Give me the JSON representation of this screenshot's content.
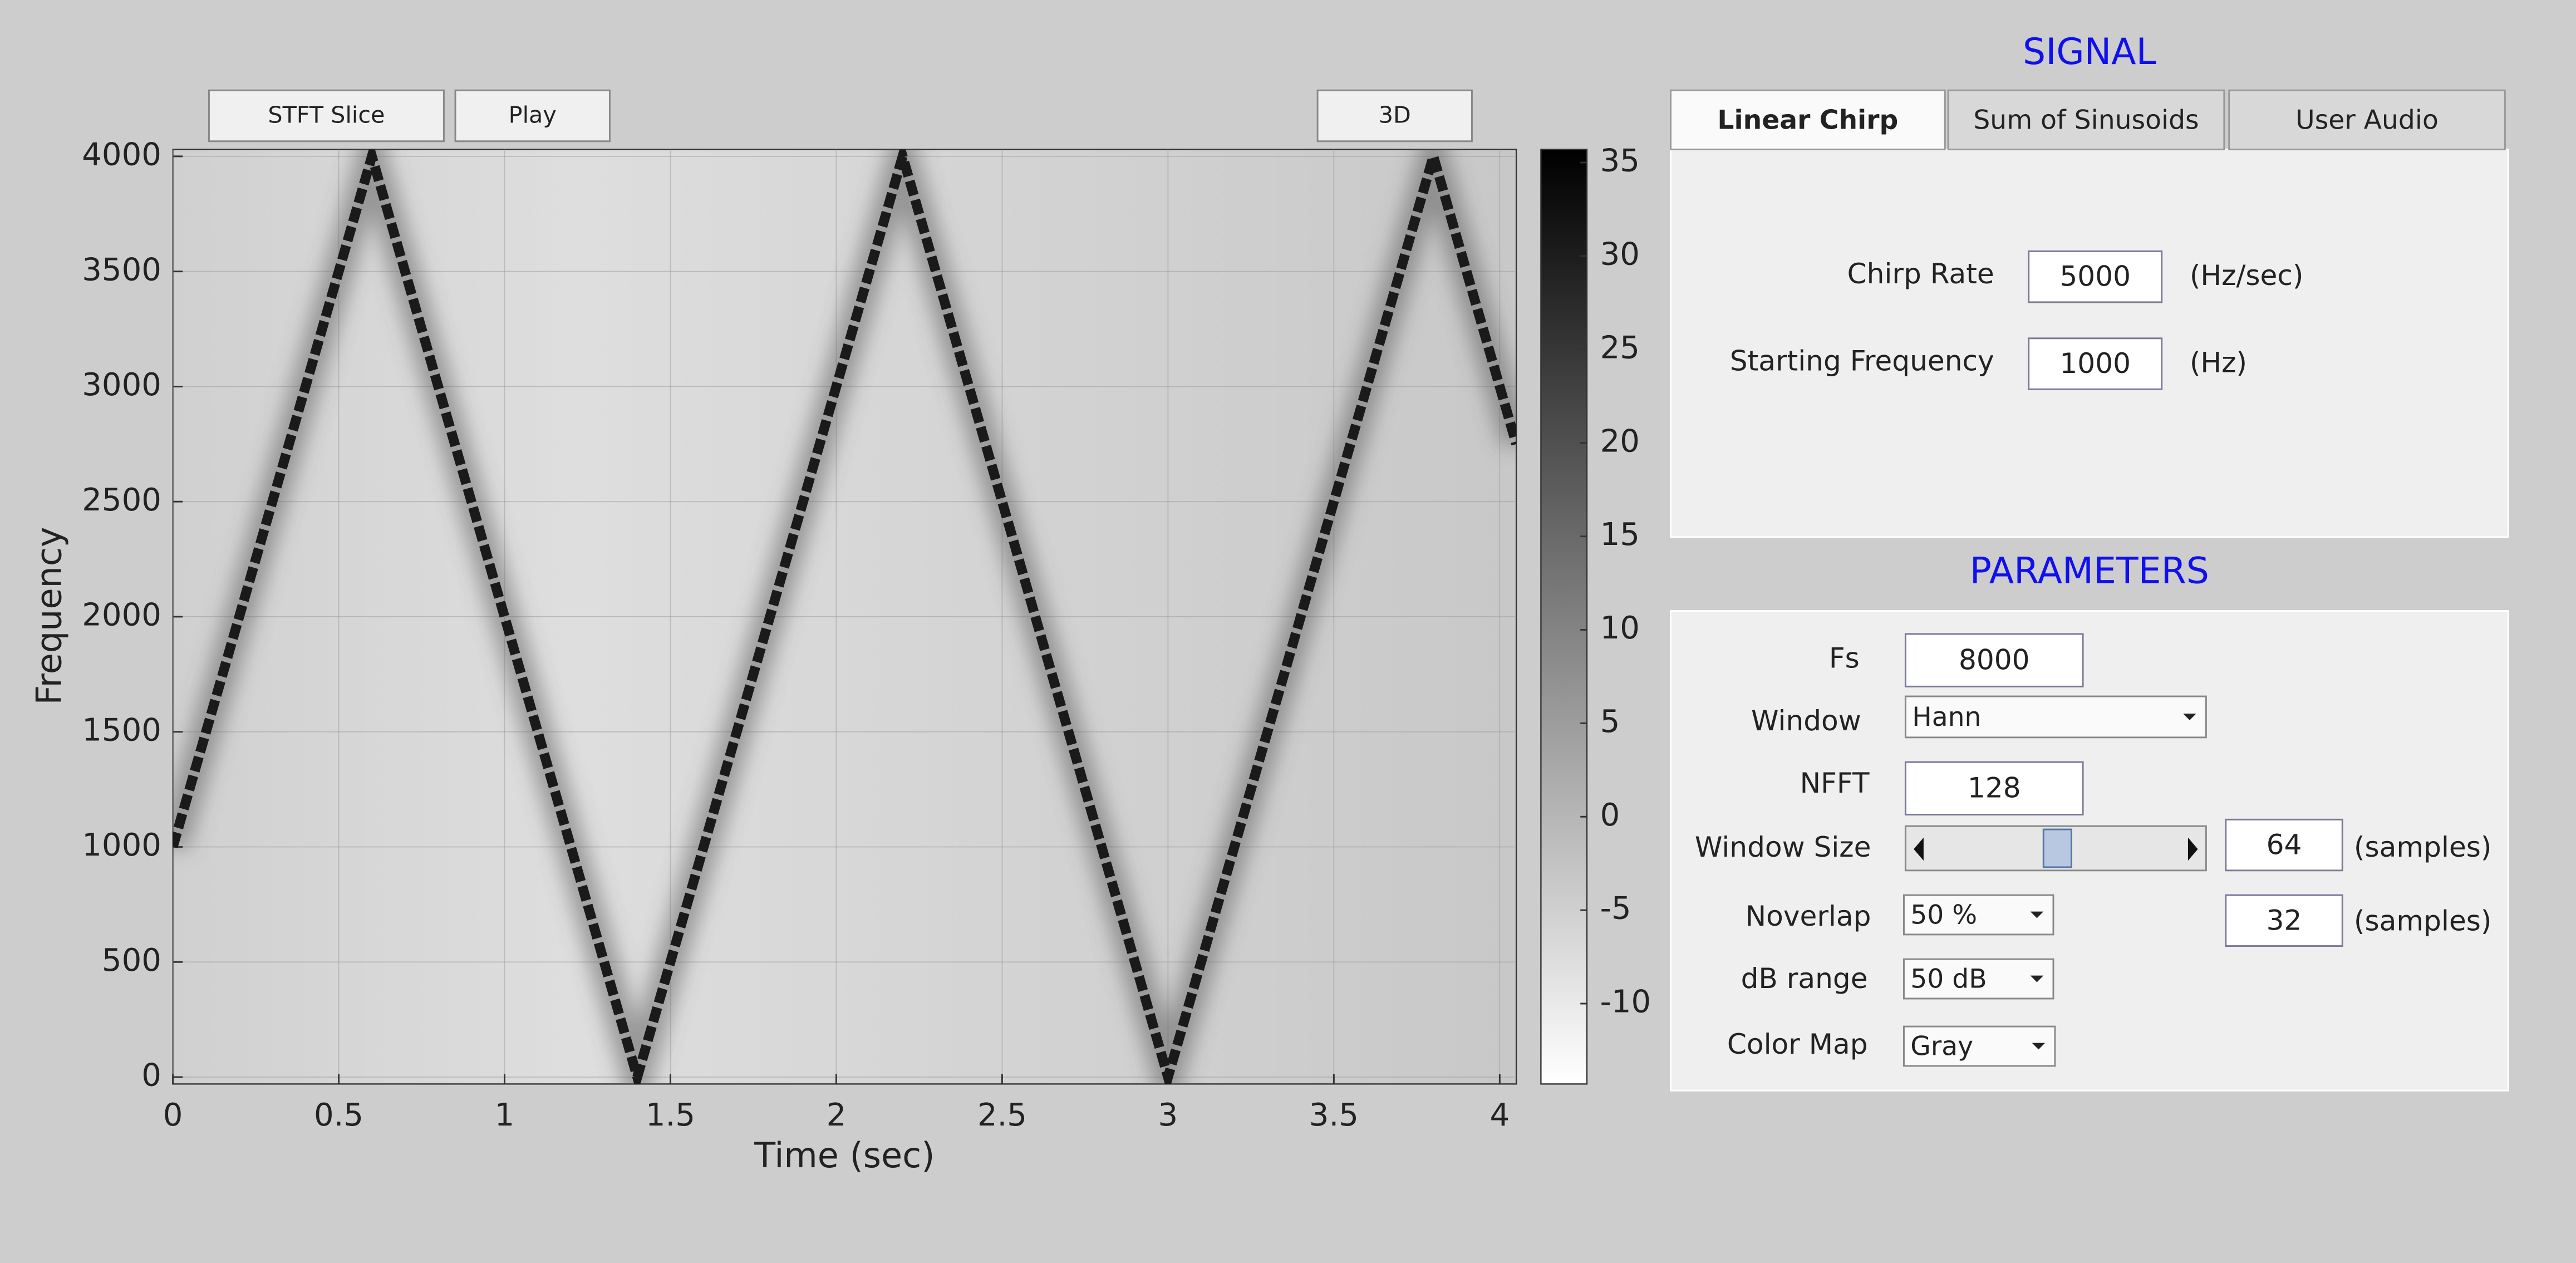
{
  "toolbar": {
    "buttons": [
      "STFT Slice",
      "Play",
      "3D"
    ]
  },
  "chart_data": {
    "type": "line",
    "x_label": "Time (sec)",
    "y_label": "Frequency",
    "x": [
      0,
      0.6,
      1.4,
      2.2,
      3.0,
      3.8,
      4.05
    ],
    "values": [
      1000,
      4000,
      0,
      4000,
      0,
      4000,
      2750
    ],
    "color": "#1a1a1a",
    "xlim": [
      0,
      4.05
    ],
    "ylim": [
      -30,
      4030
    ],
    "xticks": [
      0,
      0.5,
      1,
      1.5,
      2,
      2.5,
      3,
      3.5,
      4
    ],
    "yticks": [
      0,
      500,
      1000,
      1500,
      2000,
      2500,
      3000,
      3500,
      4000
    ],
    "grid": true,
    "colorbar": {
      "lim": [
        -14.3,
        35.7
      ],
      "ticks": [
        -10,
        -5,
        0,
        5,
        10,
        15,
        20,
        25,
        30,
        35
      ]
    }
  },
  "signal": {
    "title": "SIGNAL",
    "tabs": [
      "Linear Chirp",
      "Sum of Sinusoids",
      "User Audio"
    ],
    "active_tab": 0,
    "fields": [
      {
        "label": "Chirp Rate",
        "value": "5000",
        "unit": "(Hz/sec)"
      },
      {
        "label": "Starting Frequency",
        "value": "1000",
        "unit": "(Hz)"
      }
    ]
  },
  "parameters": {
    "title": "PARAMETERS",
    "fs": {
      "label": "Fs",
      "value": "8000"
    },
    "window": {
      "label": "Window",
      "value": "Hann"
    },
    "nfft": {
      "label": "NFFT",
      "value": "128"
    },
    "window_size": {
      "label": "Window Size",
      "value": "64",
      "unit": "(samples)"
    },
    "noverlap": {
      "label": "Noverlap",
      "value": "50 %",
      "samples": "32",
      "unit": "(samples)"
    },
    "db_range": {
      "label": "dB range",
      "value": "50 dB"
    },
    "color_map": {
      "label": "Color Map",
      "value": "Gray"
    }
  }
}
